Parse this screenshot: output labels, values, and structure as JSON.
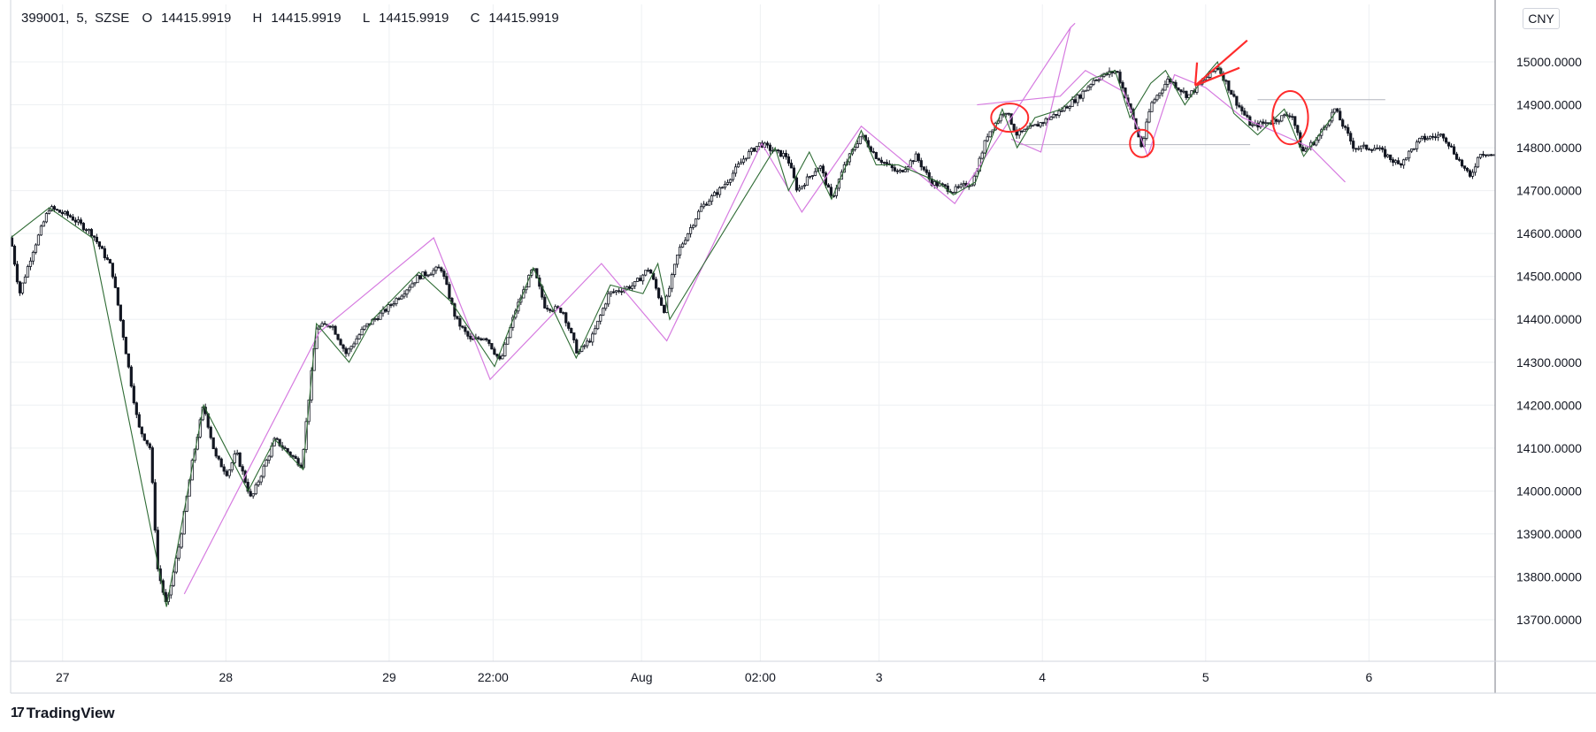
{
  "legend": {
    "symbol": "399001",
    "interval": "5",
    "exchange": "SZSE",
    "o_label": "O",
    "o_value": "14415.9919",
    "h_label": "H",
    "h_value": "14415.9919",
    "l_label": "L",
    "l_value": "14415.9919",
    "c_label": "C",
    "c_value": "14415.9919"
  },
  "currency_button": "CNY",
  "branding": {
    "logo": "17",
    "name": "TradingView"
  },
  "colors": {
    "candle": "#131722",
    "zigzag_small": "#2e6b34",
    "zigzag_large": "#d67be0",
    "annotation": "#ff2b2b",
    "grid": "#eef0f3",
    "level": "#b2b5be"
  },
  "chart_data": {
    "type": "candlestick",
    "title": "",
    "xlabel": "",
    "ylabel": "",
    "ylim": [
      13600,
      15040
    ],
    "yticks": [
      "13700.0000",
      "13800.0000",
      "13900.0000",
      "14000.0000",
      "14100.0000",
      "14200.0000",
      "14300.0000",
      "14400.0000",
      "14500.0000",
      "14600.0000",
      "14700.0000",
      "14800.0000",
      "14900.0000",
      "15000.0000"
    ],
    "x_range": [
      0,
      100
    ],
    "xticks": [
      {
        "x": 3.5,
        "label": "27"
      },
      {
        "x": 14.5,
        "label": "28"
      },
      {
        "x": 25.5,
        "label": "29"
      },
      {
        "x": 32.5,
        "label": "22:00"
      },
      {
        "x": 42.5,
        "label": "Aug"
      },
      {
        "x": 50.5,
        "label": "02:00"
      },
      {
        "x": 58.5,
        "label": "3"
      },
      {
        "x": 69.5,
        "label": "4"
      },
      {
        "x": 80.5,
        "label": "5"
      },
      {
        "x": 91.5,
        "label": "6"
      }
    ],
    "price_path": [
      [
        0,
        14590
      ],
      [
        0.6,
        14460
      ],
      [
        1.5,
        14560
      ],
      [
        2.6,
        14660
      ],
      [
        4.0,
        14640
      ],
      [
        5.5,
        14600
      ],
      [
        6.8,
        14520
      ],
      [
        7.6,
        14360
      ],
      [
        8.6,
        14150
      ],
      [
        9.4,
        14100
      ],
      [
        9.9,
        13820
      ],
      [
        10.5,
        13730
      ],
      [
        11.4,
        13880
      ],
      [
        12.3,
        14080
      ],
      [
        13.0,
        14200
      ],
      [
        13.8,
        14080
      ],
      [
        14.6,
        14040
      ],
      [
        15.2,
        14090
      ],
      [
        16.2,
        13980
      ],
      [
        17.8,
        14120
      ],
      [
        19.6,
        14060
      ],
      [
        20.6,
        14380
      ],
      [
        21.6,
        14390
      ],
      [
        22.6,
        14320
      ],
      [
        23.8,
        14380
      ],
      [
        25.2,
        14420
      ],
      [
        27.5,
        14500
      ],
      [
        29.0,
        14520
      ],
      [
        30.0,
        14400
      ],
      [
        31.0,
        14350
      ],
      [
        32.0,
        14360
      ],
      [
        33.0,
        14300
      ],
      [
        34.0,
        14420
      ],
      [
        35.2,
        14520
      ],
      [
        36.0,
        14430
      ],
      [
        37.2,
        14420
      ],
      [
        38.2,
        14320
      ],
      [
        39.2,
        14360
      ],
      [
        40.3,
        14460
      ],
      [
        42.0,
        14480
      ],
      [
        43.0,
        14520
      ],
      [
        44.0,
        14420
      ],
      [
        45.0,
        14560
      ],
      [
        46.5,
        14660
      ],
      [
        48.0,
        14710
      ],
      [
        49.5,
        14780
      ],
      [
        50.5,
        14810
      ],
      [
        51.5,
        14790
      ],
      [
        52.3,
        14780
      ],
      [
        53.0,
        14700
      ],
      [
        54.5,
        14760
      ],
      [
        55.3,
        14680
      ],
      [
        56.2,
        14760
      ],
      [
        57.3,
        14830
      ],
      [
        58.3,
        14780
      ],
      [
        59.8,
        14740
      ],
      [
        61.0,
        14780
      ],
      [
        62.0,
        14720
      ],
      [
        63.5,
        14700
      ],
      [
        64.8,
        14720
      ],
      [
        65.8,
        14830
      ],
      [
        67.0,
        14890
      ],
      [
        67.8,
        14830
      ],
      [
        69.0,
        14850
      ],
      [
        70.5,
        14880
      ],
      [
        72.0,
        14920
      ],
      [
        73.0,
        14960
      ],
      [
        74.5,
        14980
      ],
      [
        75.5,
        14880
      ],
      [
        76.2,
        14800
      ],
      [
        76.8,
        14900
      ],
      [
        78.0,
        14960
      ],
      [
        79.3,
        14920
      ],
      [
        80.5,
        14960
      ],
      [
        81.3,
        14990
      ],
      [
        82.5,
        14910
      ],
      [
        83.6,
        14850
      ],
      [
        84.8,
        14860
      ],
      [
        86.3,
        14880
      ],
      [
        87.0,
        14790
      ],
      [
        88.0,
        14820
      ],
      [
        89.2,
        14890
      ],
      [
        90.5,
        14800
      ],
      [
        92.0,
        14800
      ],
      [
        93.5,
        14760
      ],
      [
        95.0,
        14820
      ],
      [
        96.5,
        14830
      ],
      [
        98.3,
        14730
      ],
      [
        99.0,
        14790
      ],
      [
        100,
        14780
      ]
    ],
    "zigzag_small": [
      [
        0,
        14590
      ],
      [
        2.6,
        14660
      ],
      [
        5.5,
        14590
      ],
      [
        10.5,
        13730
      ],
      [
        13.0,
        14200
      ],
      [
        16.0,
        14000
      ],
      [
        17.8,
        14120
      ],
      [
        19.7,
        14050
      ],
      [
        20.6,
        14390
      ],
      [
        22.8,
        14300
      ],
      [
        24.4,
        14400
      ],
      [
        27.5,
        14510
      ],
      [
        29.7,
        14440
      ],
      [
        32.6,
        14290
      ],
      [
        35.2,
        14520
      ],
      [
        38.1,
        14310
      ],
      [
        40.4,
        14480
      ],
      [
        42.6,
        14460
      ],
      [
        43.6,
        14530
      ],
      [
        44.4,
        14400
      ],
      [
        51.5,
        14800
      ],
      [
        52.4,
        14700
      ],
      [
        53.8,
        14790
      ],
      [
        55.3,
        14680
      ],
      [
        57.3,
        14840
      ],
      [
        58.3,
        14760
      ],
      [
        59.8,
        14760
      ],
      [
        62.5,
        14720
      ],
      [
        63.5,
        14690
      ],
      [
        65.0,
        14720
      ],
      [
        66.8,
        14890
      ],
      [
        67.8,
        14800
      ],
      [
        69.0,
        14870
      ],
      [
        70.8,
        14890
      ],
      [
        72.8,
        14960
      ],
      [
        74.4,
        14980
      ],
      [
        75.4,
        14870
      ],
      [
        76.8,
        14950
      ],
      [
        77.8,
        14980
      ],
      [
        79.1,
        14900
      ],
      [
        80.3,
        14960
      ],
      [
        81.3,
        15000
      ],
      [
        82.4,
        14880
      ],
      [
        84.0,
        14830
      ],
      [
        85.8,
        14890
      ],
      [
        87.1,
        14780
      ],
      [
        89.2,
        14880
      ]
    ],
    "zigzag_large": [
      [
        11.7,
        13760
      ],
      [
        20.8,
        14370
      ],
      [
        28.5,
        14590
      ],
      [
        32.3,
        14260
      ],
      [
        39.8,
        14530
      ],
      [
        44.2,
        14350
      ],
      [
        50.6,
        14810
      ],
      [
        53.3,
        14650
      ],
      [
        57.3,
        14850
      ],
      [
        63.6,
        14670
      ],
      [
        71.4,
        15080
      ],
      [
        71.7,
        15090
      ]
    ],
    "zigzag_large_segments": [
      [
        [
          67.4,
          14820
        ],
        [
          69.4,
          14790
        ],
        [
          71.4,
          15080
        ]
      ],
      [
        [
          65.1,
          14900
        ],
        [
          70.7,
          14920
        ],
        [
          72.4,
          14980
        ],
        [
          75.0,
          14930
        ],
        [
          76.6,
          14780
        ],
        [
          78.4,
          14970
        ],
        [
          80.5,
          14940
        ],
        [
          83.0,
          14870
        ],
        [
          87.6,
          14800
        ],
        [
          89.9,
          14720
        ]
      ]
    ],
    "levels": [
      {
        "y": 14807,
        "x0": 67.8,
        "x1": 83.5
      },
      {
        "y": 14912,
        "x0": 84.0,
        "x1": 92.6
      }
    ],
    "annotations": {
      "circles": [
        {
          "x": 67.3,
          "y": 14870,
          "rx": 1.25,
          "ry": 33
        },
        {
          "x": 76.2,
          "y": 14810,
          "rx": 0.8,
          "ry": 32
        },
        {
          "x": 86.2,
          "y": 14870,
          "rx": 1.2,
          "ry": 62
        }
      ],
      "arrow": {
        "from": [
          83.3,
          15050
        ],
        "to": [
          79.8,
          14945
        ]
      }
    }
  }
}
